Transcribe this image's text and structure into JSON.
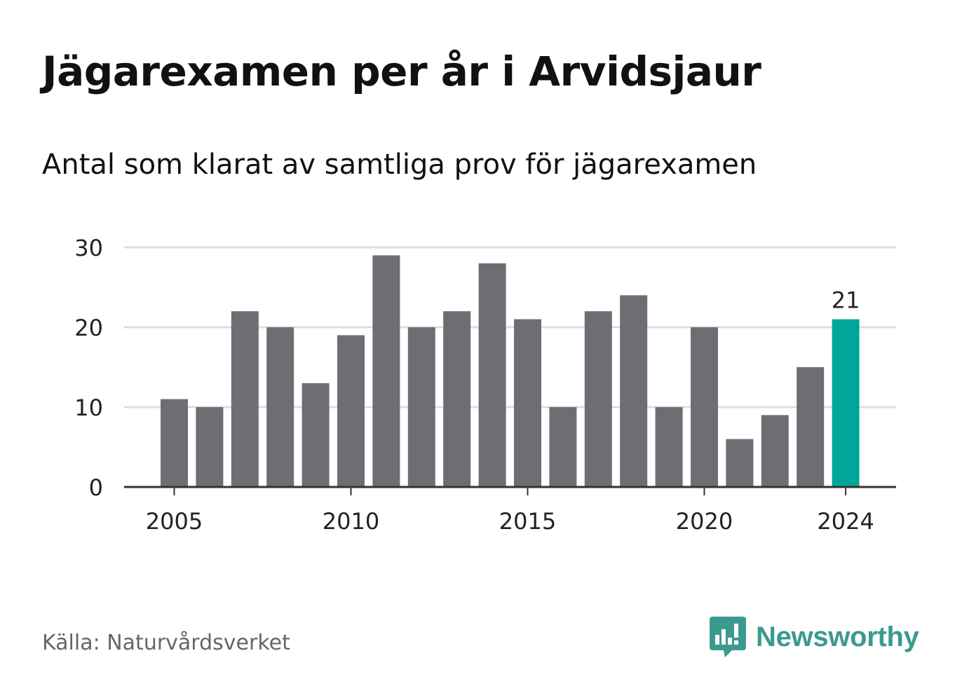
{
  "title": "Jägarexamen per år i Arvidsjaur",
  "subtitle": "Antal som klarat av samtliga prov för jägarexamen",
  "source": "Källa: Naturvårdsverket",
  "brand": {
    "name": "Newsworthy",
    "logo_icon": "bar-chart-speech-bubble-icon"
  },
  "colors": {
    "bar": "#6e6d73",
    "highlight": "#00a69a",
    "grid": "#dddddd",
    "axis": "#333333",
    "text": "#222222",
    "brand": "#3a9a90"
  },
  "chart_data": {
    "type": "bar",
    "categories": [
      2005,
      2006,
      2007,
      2008,
      2009,
      2010,
      2011,
      2012,
      2013,
      2014,
      2015,
      2016,
      2017,
      2018,
      2019,
      2020,
      2021,
      2022,
      2023,
      2024
    ],
    "values": [
      11,
      10,
      22,
      20,
      13,
      19,
      29,
      20,
      22,
      28,
      21,
      10,
      22,
      24,
      10,
      20,
      6,
      9,
      15,
      21
    ],
    "highlight_category": 2024,
    "value_label": "21",
    "x_tick_labels": [
      "2005",
      "2010",
      "2015",
      "2020",
      "2024"
    ],
    "y_ticks": [
      0,
      10,
      20,
      30
    ],
    "ylim": [
      0,
      30
    ],
    "title": "Jägarexamen per år i Arvidsjaur",
    "subtitle": "Antal som klarat av samtliga prov för jägarexamen",
    "xlabel": "",
    "ylabel": "",
    "grid": true,
    "legend": "none"
  }
}
